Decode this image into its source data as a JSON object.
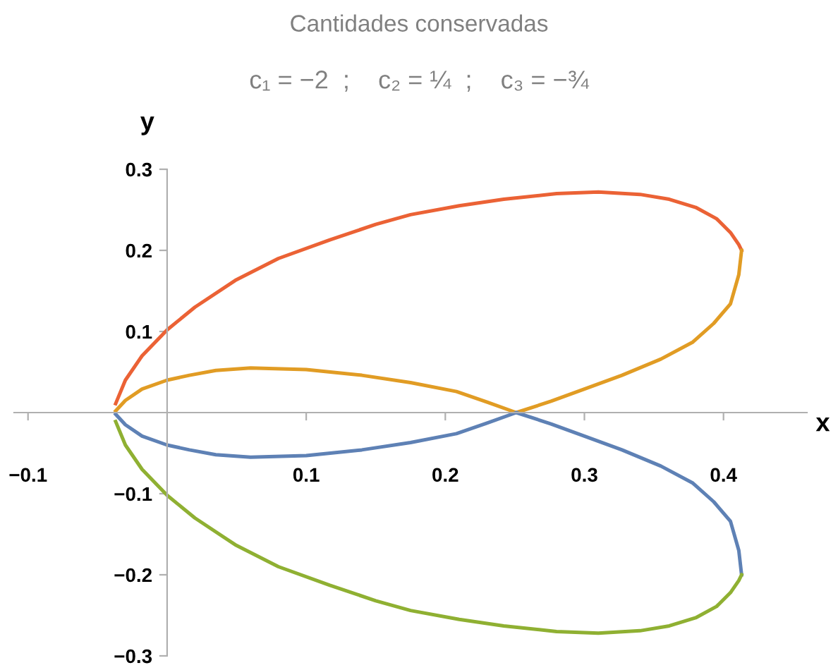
{
  "chart_data": {
    "type": "line",
    "title": "Cantidades conservadas",
    "subtitle": "c₁ = −2  ;    c₂ = ¼  ;    c₃ = −¾",
    "xlabel": "x",
    "ylabel": "y",
    "xlim": [
      -0.11,
      0.46
    ],
    "ylim": [
      -0.3,
      0.3
    ],
    "xticks": [
      -0.1,
      0.1,
      0.2,
      0.3,
      0.4
    ],
    "yticks": [
      -0.3,
      -0.2,
      -0.1,
      0.1,
      0.2,
      0.3
    ],
    "grid": false,
    "legend": false,
    "marker": "none",
    "line_style": "solid",
    "series": [
      {
        "color": "#eb6235",
        "x": [
          -0.037,
          -0.03,
          -0.018,
          0,
          0.02,
          0.049,
          0.08,
          0.117,
          0.15,
          0.175,
          0.21,
          0.242,
          0.28,
          0.31,
          0.34,
          0.361,
          0.38,
          0.395,
          0.405,
          0.411,
          0.413
        ],
        "values": [
          0.011,
          0.04,
          0.07,
          0.102,
          0.13,
          0.163,
          0.19,
          0.213,
          0.232,
          0.244,
          0.255,
          0.263,
          0.27,
          0.272,
          0.269,
          0.263,
          0.253,
          0.239,
          0.222,
          0.207,
          0.2
        ]
      },
      {
        "color": "#e19c24",
        "x": [
          0.413,
          0.411,
          0.405,
          0.393,
          0.378,
          0.355,
          0.327,
          0.3,
          0.276,
          0.251,
          0.23,
          0.208,
          0.175,
          0.14,
          0.1,
          0.06,
          0.035,
          0.016,
          0,
          -0.018,
          -0.03,
          -0.037
        ],
        "values": [
          0.2,
          0.17,
          0.134,
          0.11,
          0.087,
          0.066,
          0.046,
          0.029,
          0.014,
          0,
          0.013,
          0.026,
          0.037,
          0.046,
          0.053,
          0.055,
          0.052,
          0.046,
          0.04,
          0.029,
          0.015,
          0.002
        ]
      },
      {
        "color": "#5e81b5",
        "x": [
          -0.037,
          -0.03,
          -0.018,
          0,
          0.016,
          0.035,
          0.06,
          0.1,
          0.14,
          0.175,
          0.208,
          0.23,
          0.251,
          0.276,
          0.3,
          0.327,
          0.355,
          0.378,
          0.393,
          0.405,
          0.411,
          0.413
        ],
        "values": [
          -0.002,
          -0.015,
          -0.029,
          -0.04,
          -0.046,
          -0.052,
          -0.055,
          -0.053,
          -0.046,
          -0.037,
          -0.026,
          -0.013,
          0,
          -0.014,
          -0.029,
          -0.046,
          -0.066,
          -0.087,
          -0.11,
          -0.134,
          -0.17,
          -0.2
        ]
      },
      {
        "color": "#8fb032",
        "x": [
          0.413,
          0.411,
          0.405,
          0.395,
          0.38,
          0.361,
          0.34,
          0.31,
          0.28,
          0.242,
          0.21,
          0.175,
          0.15,
          0.117,
          0.08,
          0.049,
          0.02,
          0,
          -0.018,
          -0.03,
          -0.037
        ],
        "values": [
          -0.2,
          -0.207,
          -0.222,
          -0.239,
          -0.253,
          -0.263,
          -0.269,
          -0.272,
          -0.27,
          -0.263,
          -0.255,
          -0.244,
          -0.232,
          -0.213,
          -0.19,
          -0.163,
          -0.13,
          -0.102,
          -0.07,
          -0.04,
          -0.011
        ]
      }
    ]
  }
}
